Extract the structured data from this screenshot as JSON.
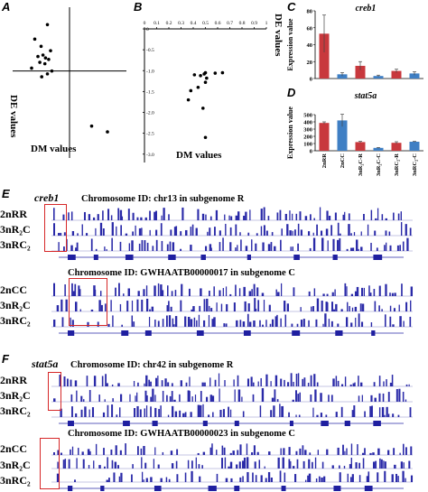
{
  "panels": {
    "A": {
      "letter": "A",
      "xlabel": "DM values",
      "ylabel": "DE values",
      "points": [
        [
          -0.55,
          1.1
        ],
        [
          -0.35,
          1.6
        ],
        [
          -0.45,
          0.85
        ],
        [
          -0.3,
          0.7
        ],
        [
          -0.42,
          0.55
        ],
        [
          -0.38,
          0.45
        ],
        [
          -0.5,
          0.5
        ],
        [
          -0.33,
          0.4
        ],
        [
          -0.47,
          0.3
        ],
        [
          -0.39,
          0.25
        ],
        [
          -0.6,
          0.1
        ],
        [
          -0.28,
          0.0
        ],
        [
          -0.35,
          -0.1
        ],
        [
          -0.44,
          -0.2
        ],
        [
          0.35,
          -1.9
        ],
        [
          0.6,
          -2.1
        ]
      ],
      "xlim": [
        -0.9,
        0.9
      ],
      "ylim": [
        -3.0,
        2.2
      ]
    },
    "B": {
      "letter": "B",
      "xlabel": "DM values",
      "ylabel": "DE values",
      "x_ticks": [
        "0",
        "0.1",
        "0.2",
        "0.3",
        "0.4",
        "0.5",
        "0.6",
        "0.7",
        "0.8",
        "0.9",
        "1"
      ],
      "y_ticks": [
        "0",
        "-0.5",
        "-1.0",
        "-1.5",
        "-2.0",
        "-2.5",
        "-3.0"
      ],
      "points": [
        [
          0.41,
          -1.1
        ],
        [
          0.46,
          -1.12
        ],
        [
          0.49,
          -1.08
        ],
        [
          0.5,
          -1.05
        ],
        [
          0.51,
          -1.18
        ],
        [
          0.5,
          -1.28
        ],
        [
          0.44,
          -1.4
        ],
        [
          0.38,
          -1.48
        ],
        [
          0.36,
          -1.7
        ],
        [
          0.48,
          -1.9
        ],
        [
          0.58,
          -1.06
        ],
        [
          0.64,
          -1.05
        ],
        [
          0.5,
          -2.6
        ]
      ],
      "xlim": [
        0,
        1
      ],
      "ylim": [
        -3.2,
        0
      ]
    },
    "C": {
      "letter": "C",
      "title": "creb1",
      "ylabel": "Expression value",
      "y_ticks": [
        "0",
        "20",
        "40",
        "60",
        "80"
      ],
      "ymax": 80,
      "categories": [
        "2nRR",
        "2nCC",
        "3nR₂C-R",
        "3nR₂C-C",
        "3nRC₂-R",
        "3nRC₂-C"
      ],
      "values": [
        53,
        5,
        15,
        3,
        9,
        6
      ],
      "errors": [
        22,
        2,
        5,
        1,
        2,
        2
      ],
      "colors": [
        "#c8383d",
        "#3f7fc4",
        "#c8383d",
        "#3f7fc4",
        "#c8383d",
        "#3f7fc4"
      ]
    },
    "D": {
      "letter": "D",
      "title": "stat5a",
      "ylabel": "Expression value",
      "y_ticks": [
        "0",
        "100",
        "200",
        "300",
        "400",
        "500"
      ],
      "ymax": 500,
      "categories": [
        "2nRR",
        "2nCC",
        "3nR₂C-R",
        "3nR₂C-C",
        "3nRC₂-R",
        "3nRC₂-C"
      ],
      "values": [
        385,
        420,
        120,
        40,
        110,
        125
      ],
      "errors": [
        15,
        85,
        10,
        5,
        15,
        5
      ],
      "colors": [
        "#c8383d",
        "#3f7fc4",
        "#c8383d",
        "#3f7fc4",
        "#c8383d",
        "#3f7fc4"
      ]
    }
  },
  "tracks": {
    "E": {
      "letter": "E",
      "gene": "creb1",
      "group1": {
        "chrom": "Chromosome ID: chr13 in  subgenome R",
        "labels": [
          "2nRR",
          "3nR₂C",
          "3nRC₂"
        ]
      },
      "group2": {
        "chrom": "Chromosome ID: GWHAATB00000017 in subgenome C",
        "labels": [
          "2nCC",
          "3nR₂C",
          "3nRC₂"
        ]
      }
    },
    "F": {
      "letter": "F",
      "gene": "stat5a",
      "group1": {
        "chrom": "Chromosome ID: chr42 in subgenome R",
        "labels": [
          "2nRR",
          "3nR₂C",
          "3nRC₂"
        ]
      },
      "group2": {
        "chrom": "Chromosome ID: GWHAATB00000023 in subgenome C",
        "labels": [
          "2nCC",
          "3nR₂C",
          "3nRC₂"
        ]
      }
    }
  },
  "colors": {
    "track": "#2a2aa8",
    "highlight": "#d62728",
    "axis": "#000000"
  },
  "chart_data": [
    {
      "type": "scatter",
      "xlabel": "DM values",
      "ylabel": "DE values",
      "points": [
        [
          -0.55,
          1.1
        ],
        [
          -0.35,
          1.6
        ],
        [
          -0.45,
          0.85
        ],
        [
          -0.3,
          0.7
        ],
        [
          -0.42,
          0.55
        ],
        [
          -0.38,
          0.45
        ],
        [
          -0.5,
          0.5
        ],
        [
          -0.33,
          0.4
        ],
        [
          -0.47,
          0.3
        ],
        [
          -0.39,
          0.25
        ],
        [
          -0.6,
          0.1
        ],
        [
          -0.28,
          0.0
        ],
        [
          -0.35,
          -0.1
        ],
        [
          -0.44,
          -0.2
        ],
        [
          0.35,
          -1.9
        ],
        [
          0.6,
          -2.1
        ]
      ]
    },
    {
      "type": "scatter",
      "xlabel": "DM values",
      "ylabel": "DE values",
      "xlim": [
        0,
        1
      ],
      "ylim": [
        -3.0,
        0
      ],
      "points": [
        [
          0.41,
          -1.1
        ],
        [
          0.46,
          -1.12
        ],
        [
          0.49,
          -1.08
        ],
        [
          0.5,
          -1.05
        ],
        [
          0.51,
          -1.18
        ],
        [
          0.5,
          -1.28
        ],
        [
          0.44,
          -1.4
        ],
        [
          0.38,
          -1.48
        ],
        [
          0.36,
          -1.7
        ],
        [
          0.48,
          -1.9
        ],
        [
          0.58,
          -1.06
        ],
        [
          0.64,
          -1.05
        ],
        [
          0.5,
          -2.6
        ]
      ]
    },
    {
      "type": "bar",
      "title": "creb1",
      "ylabel": "Expression value",
      "ylim": [
        0,
        80
      ],
      "categories": [
        "2nRR",
        "2nCC",
        "3nR₂C-R",
        "3nR₂C-C",
        "3nRC₂-R",
        "3nRC₂-C"
      ],
      "values": [
        53,
        5,
        15,
        3,
        9,
        6
      ]
    },
    {
      "type": "bar",
      "title": "stat5a",
      "ylabel": "Expression value",
      "ylim": [
        0,
        500
      ],
      "categories": [
        "2nRR",
        "2nCC",
        "3nR₂C-R",
        "3nR₂C-C",
        "3nRC₂-R",
        "3nRC₂-C"
      ],
      "values": [
        385,
        420,
        120,
        40,
        110,
        125
      ]
    }
  ]
}
